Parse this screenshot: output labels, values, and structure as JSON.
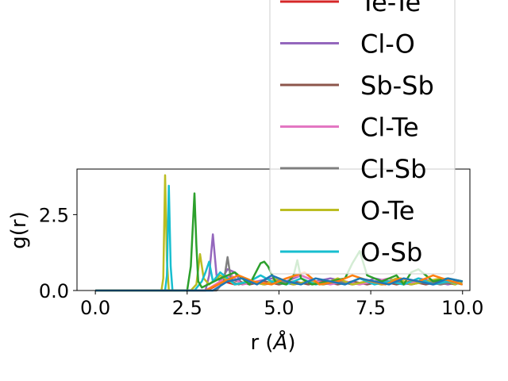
{
  "chart_data": {
    "type": "line",
    "xlabel": "r (Å)",
    "xlabel_r": "r (",
    "xlabel_unit": "Å",
    "xlabel_close": ")",
    "ylabel": "g(r)",
    "xlim": [
      -0.5,
      10.2
    ],
    "ylim": [
      0,
      4.0
    ],
    "xticks": [
      0.0,
      2.5,
      5.0,
      7.5,
      10.0
    ],
    "xtick_labels": [
      "0.0",
      "2.5",
      "5.0",
      "7.5",
      "10.0"
    ],
    "yticks": [
      0.0,
      2.5
    ],
    "ytick_labels": [
      "0.0",
      "2.5"
    ],
    "legend_position": "upper-right, extending above the axes",
    "series": [
      {
        "name": "Te-Te",
        "color": "#d62728",
        "x": [
          0,
          1.9,
          2.0,
          2.4,
          2.8,
          3.0,
          3.2,
          3.5,
          3.8,
          4.2,
          4.6,
          5.0,
          5.4,
          5.8,
          6.2,
          6.6,
          7.0,
          7.4,
          7.8,
          8.2,
          8.6,
          9.0,
          9.4,
          9.8,
          10.0
        ],
        "y": [
          0,
          0,
          0,
          0,
          0,
          0,
          0.1,
          0.3,
          0.2,
          0.3,
          0.2,
          0.3,
          0.2,
          0.3,
          0.2,
          0.3,
          0.2,
          0.3,
          0.2,
          0.3,
          0.2,
          0.3,
          0.2,
          0.3,
          0.2
        ]
      },
      {
        "name": "Cl-O",
        "color": "#9467bd",
        "x": [
          0,
          2.9,
          3.0,
          3.1,
          3.2,
          3.3,
          3.4,
          3.6,
          3.8,
          4.0,
          4.4,
          4.8,
          5.2,
          5.6,
          6.0,
          6.4,
          6.8,
          7.2,
          7.6,
          8.0,
          8.4,
          8.8,
          9.2,
          9.6,
          10.0
        ],
        "y": [
          0,
          0,
          0,
          0.5,
          1.85,
          0.5,
          0.3,
          0.7,
          0.6,
          0.2,
          0.3,
          0.4,
          0.3,
          0.5,
          0.3,
          0.4,
          0.3,
          0.2,
          0.4,
          0.3,
          0.2,
          0.4,
          0.3,
          0.2,
          0.3
        ]
      },
      {
        "name": "Sb-Sb",
        "color": "#8c564b",
        "x": [
          0,
          3.0,
          3.3,
          3.6,
          3.9,
          4.2,
          4.6,
          5.0,
          5.4,
          5.8,
          6.2,
          6.6,
          7.0,
          7.4,
          7.8,
          8.2,
          8.6,
          9.0,
          9.4,
          9.8,
          10.0
        ],
        "y": [
          0,
          0,
          0.2,
          0.4,
          0.3,
          0.2,
          0.3,
          0.2,
          0.3,
          0.2,
          0.3,
          0.2,
          0.3,
          0.2,
          0.3,
          0.2,
          0.3,
          0.2,
          0.3,
          0.2,
          0.3
        ]
      },
      {
        "name": "Cl-Te",
        "color": "#e377c2",
        "x": [
          0,
          3.0,
          3.4,
          3.7,
          4.0,
          4.4,
          4.8,
          5.2,
          5.6,
          6.0,
          6.4,
          6.8,
          7.2,
          7.6,
          8.0,
          8.4,
          8.8,
          9.2,
          9.6,
          10.0
        ],
        "y": [
          0,
          0,
          0.3,
          0.5,
          0.2,
          0.3,
          0.2,
          0.4,
          0.5,
          0.3,
          0.2,
          0.3,
          0.2,
          0.3,
          0.4,
          0.2,
          0.3,
          0.2,
          0.3,
          0.2
        ]
      },
      {
        "name": "Cl-Sb",
        "color": "#7f7f7f",
        "x": [
          0,
          3.3,
          3.5,
          3.6,
          3.7,
          3.9,
          4.2,
          4.6,
          5.0,
          5.4,
          5.8,
          6.2,
          6.6,
          7.0,
          7.4,
          7.8,
          8.2,
          8.6,
          9.0,
          9.4,
          9.8,
          10.0
        ],
        "y": [
          0,
          0,
          0.3,
          1.1,
          0.3,
          0.2,
          0.3,
          0.2,
          0.3,
          0.2,
          0.3,
          0.2,
          0.3,
          0.2,
          0.3,
          0.2,
          0.3,
          0.2,
          0.3,
          0.2,
          0.3,
          0.2
        ]
      },
      {
        "name": "O-Te",
        "color": "#bcbd22",
        "x": [
          0,
          1.8,
          1.85,
          1.9,
          1.95,
          2.0,
          2.6,
          2.75,
          2.85,
          2.95,
          3.1,
          3.4,
          3.8,
          4.2,
          4.6,
          5.0,
          5.4,
          5.8,
          6.2,
          6.6,
          7.0,
          7.4,
          7.8,
          8.2,
          8.6,
          9.0,
          9.4,
          9.8,
          10.0
        ],
        "y": [
          0,
          0,
          0.4,
          3.8,
          1.0,
          0,
          0,
          0.2,
          1.2,
          0.4,
          0.2,
          0.5,
          0.2,
          0.3,
          0.2,
          0.4,
          0.2,
          0.3,
          0.2,
          0.4,
          0.2,
          0.3,
          0.2,
          0.4,
          0.2,
          0.3,
          0.4,
          0.2,
          0.3
        ]
      },
      {
        "name": "O-Sb",
        "color": "#17becf",
        "x": [
          0,
          1.9,
          1.95,
          2.0,
          2.05,
          2.1,
          2.7,
          2.9,
          3.0,
          3.1,
          3.2,
          3.4,
          3.6,
          3.8,
          4.2,
          4.5,
          4.8,
          5.2,
          5.6,
          6.0,
          6.4,
          6.8,
          7.2,
          7.6,
          8.0,
          8.4,
          8.8,
          9.2,
          9.6,
          10.0
        ],
        "y": [
          0,
          0,
          0.5,
          3.45,
          0.8,
          0,
          0,
          0.3,
          0.6,
          0.95,
          0.3,
          0.6,
          0.4,
          0.2,
          0.3,
          0.5,
          0.3,
          0.2,
          0.4,
          0.2,
          0.3,
          0.2,
          0.4,
          0.2,
          0.3,
          0.2,
          0.4,
          0.2,
          0.3,
          0.2
        ]
      },
      {
        "name": "",
        "color": "#2ca02c",
        "x": [
          0,
          2.5,
          2.6,
          2.7,
          2.75,
          2.8,
          2.9,
          3.4,
          3.8,
          4.2,
          4.5,
          4.6,
          4.7,
          4.9,
          5.2,
          5.4,
          5.5,
          5.6,
          5.9,
          6.4,
          6.8,
          7.0,
          7.2,
          7.4,
          7.8,
          8.2,
          8.4,
          8.6,
          8.8,
          9.2,
          9.6,
          10.0
        ],
        "y": [
          0,
          0,
          0.8,
          3.2,
          1.5,
          0.3,
          0.1,
          0.4,
          0.6,
          0.2,
          0.9,
          0.95,
          0.8,
          0.3,
          0.2,
          0.5,
          1.0,
          0.4,
          0.2,
          0.3,
          0.4,
          0.9,
          1.3,
          0.5,
          0.3,
          0.5,
          0.2,
          0.6,
          0.7,
          0.3,
          0.4,
          0.3
        ]
      },
      {
        "name": "",
        "color": "#ff7f0e",
        "x": [
          0,
          3.0,
          3.5,
          3.9,
          4.3,
          4.8,
          5.2,
          5.7,
          6.1,
          6.6,
          7.0,
          7.5,
          7.9,
          8.3,
          8.8,
          9.2,
          9.7,
          10.0
        ],
        "y": [
          0,
          0,
          0.3,
          0.5,
          0.3,
          0.2,
          0.4,
          0.6,
          0.2,
          0.3,
          0.5,
          0.3,
          0.2,
          0.4,
          0.3,
          0.5,
          0.3,
          0.2
        ]
      },
      {
        "name": "",
        "color": "#1f77b4",
        "x": [
          0,
          3.2,
          3.6,
          4.0,
          4.4,
          4.8,
          5.2,
          5.6,
          6.0,
          6.4,
          6.8,
          7.2,
          7.6,
          8.0,
          8.4,
          8.8,
          9.2,
          9.6,
          10.0
        ],
        "y": [
          0,
          0,
          0.3,
          0.4,
          0.2,
          0.5,
          0.3,
          0.2,
          0.4,
          0.3,
          0.2,
          0.4,
          0.3,
          0.2,
          0.4,
          0.3,
          0.2,
          0.4,
          0.3
        ]
      }
    ],
    "legend_entries": [
      {
        "label": "Te-Te",
        "color": "#d62728"
      },
      {
        "label": "Cl-O",
        "color": "#9467bd"
      },
      {
        "label": "Sb-Sb",
        "color": "#8c564b"
      },
      {
        "label": "Cl-Te",
        "color": "#e377c2"
      },
      {
        "label": "Cl-Sb",
        "color": "#7f7f7f"
      },
      {
        "label": "O-Te",
        "color": "#bcbd22"
      },
      {
        "label": "O-Sb",
        "color": "#17becf"
      }
    ]
  }
}
